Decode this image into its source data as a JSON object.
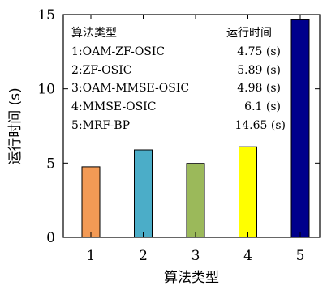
{
  "chart_data": {
    "type": "bar",
    "categories": [
      "1",
      "2",
      "3",
      "4",
      "5"
    ],
    "values": [
      4.75,
      5.89,
      4.98,
      6.1,
      14.65
    ],
    "bar_colors": [
      "#F39A55",
      "#4BADC8",
      "#9BB95A",
      "#FFFF00",
      "#00008B"
    ],
    "xlabel": "算法类型",
    "ylabel": "运行时间 (s)",
    "ylim": [
      0,
      15
    ],
    "yticks": [
      "0",
      "5",
      "10",
      "15"
    ],
    "grid": false,
    "legend": {
      "placement": "top-left",
      "header_left": "算法类型",
      "header_right": "运行时间",
      "entries": [
        {
          "name": "1:OAM-ZF-OSIC",
          "value": "4.75 (s)"
        },
        {
          "name": "2:ZF-OSIC",
          "value": "5.89 (s)"
        },
        {
          "name": "3:OAM-MMSE-OSIC",
          "value": "4.98 (s)"
        },
        {
          "name": "4:MMSE-OSIC",
          "value": "6.1 (s)"
        },
        {
          "name": "5:MRF-BP",
          "value": "14.65 (s)"
        }
      ]
    }
  }
}
